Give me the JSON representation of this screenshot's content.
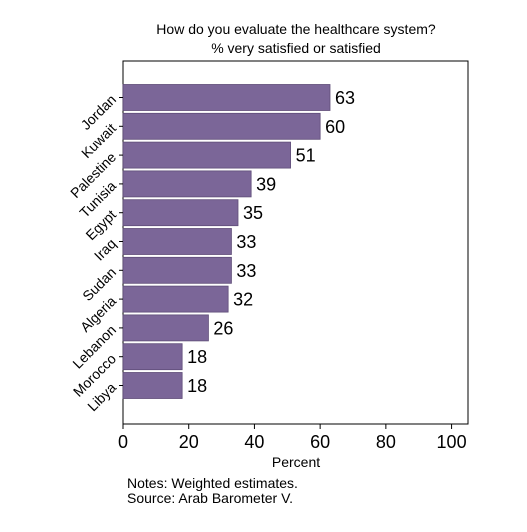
{
  "chart_data": {
    "type": "bar",
    "orientation": "horizontal",
    "title": "How do you evaluate the healthcare system?",
    "subtitle": "% very satisfied or satisfied",
    "xlabel": "Percent",
    "categories": [
      "Jordan",
      "Kuwait",
      "Palestine",
      "Tunisia",
      "Egypt",
      "Iraq",
      "Sudan",
      "Algeria",
      "Lebanon",
      "Morocco",
      "Libya"
    ],
    "values": [
      63,
      60,
      51,
      39,
      35,
      33,
      33,
      32,
      26,
      18,
      18
    ],
    "xlim": [
      0,
      105
    ],
    "xticks": [
      0,
      20,
      40,
      60,
      80,
      100
    ],
    "grid": false,
    "legend": "none",
    "bar_color": "#7b6698",
    "notes": [
      "Notes: Weighted estimates.",
      "Source: Arab Barometer V."
    ]
  }
}
